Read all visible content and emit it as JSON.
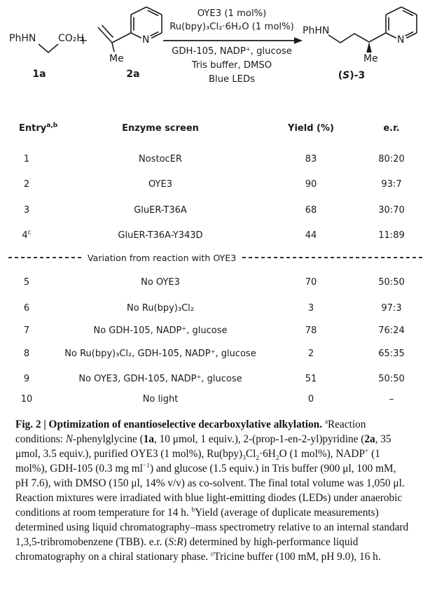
{
  "meta": {
    "background": "#ffffff",
    "ink": "#1a1a1a"
  },
  "scheme": {
    "reactant1": {
      "amine_label": "PhHN",
      "acid_label": "CO₂H",
      "compound_label": "1a"
    },
    "plus_sign": "+",
    "reactant2": {
      "methyl_label": "Me",
      "nitrogen_label": "N",
      "compound_label": "2a"
    },
    "conditions_above": [
      "OYE3 (1 mol%)",
      "Ru(bpy)₃Cl₂·6H₂O (1 mol%)"
    ],
    "conditions_below": [
      "GDH-105, NADP⁺, glucose",
      "Tris buffer, DMSO",
      "Blue LEDs"
    ],
    "product": {
      "amine_label": "PhHN",
      "methyl_label": "Me",
      "nitrogen_label": "N",
      "compound_label_runs": [
        {
          "t": "(",
          "s": "b"
        },
        {
          "t": "S",
          "s": "bi"
        },
        {
          "t": ")-3",
          "s": "b"
        }
      ]
    }
  },
  "table": {
    "headers": {
      "entry": "Entry",
      "entry_sup": "a,b",
      "enzyme": "Enzyme screen",
      "yield": "Yield (%)",
      "er": "e.r."
    },
    "divider_label": "Variation from reaction with OYE3",
    "rows": [
      {
        "entry": "1",
        "entry_sup": "",
        "enzyme": "NostocER",
        "yield": "83",
        "er": "80:20"
      },
      {
        "entry": "2",
        "entry_sup": "",
        "enzyme": "OYE3",
        "yield": "90",
        "er": "93:7"
      },
      {
        "entry": "3",
        "entry_sup": "",
        "enzyme": "GluER-T36A",
        "yield": "68",
        "er": "30:70"
      },
      {
        "entry": "4",
        "entry_sup": "c",
        "enzyme": "GluER-T36A-Y343D",
        "yield": "44",
        "er": "11:89"
      },
      {
        "entry": "5",
        "entry_sup": "",
        "enzyme": "No OYE3",
        "yield": "70",
        "er": "50:50"
      },
      {
        "entry": "6",
        "entry_sup": "",
        "enzyme": "No Ru(bpy)₃Cl₂",
        "yield": "3",
        "er": "97:3"
      },
      {
        "entry": "7",
        "entry_sup": "",
        "enzyme": "No GDH-105, NADP⁺, glucose",
        "yield": "78",
        "er": "76:24"
      },
      {
        "entry": "8",
        "entry_sup": "",
        "enzyme": "No Ru(bpy)₃Cl₂, GDH-105, NADP⁺, glucose",
        "yield": "2",
        "er": "65:35"
      },
      {
        "entry": "9",
        "entry_sup": "",
        "enzyme": "No OYE3, GDH-105, NADP⁺, glucose",
        "yield": "51",
        "er": "50:50"
      },
      {
        "entry": "10",
        "entry_sup": "",
        "enzyme": "No light",
        "yield": "0",
        "er": "–"
      }
    ]
  },
  "caption": {
    "runs": [
      {
        "t": "Fig. 2 | Optimization of enantioselective decarboxylative alkylation. ",
        "s": "b"
      },
      {
        "t": "a",
        "s": "sup"
      },
      {
        "t": "Reaction conditions: "
      },
      {
        "t": "N",
        "s": "i"
      },
      {
        "t": "-phenylglycine ("
      },
      {
        "t": "1a",
        "s": "b"
      },
      {
        "t": ", 10 μmol, 1 equiv.), 2-(prop-1-en-2-yl)pyridine ("
      },
      {
        "t": "2a",
        "s": "b"
      },
      {
        "t": ", 35 μmol, 3.5 equiv.), purified OYE3 (1 mol%), Ru(bpy)"
      },
      {
        "t": "3",
        "s": "sub"
      },
      {
        "t": "Cl"
      },
      {
        "t": "2",
        "s": "sub"
      },
      {
        "t": "·6H"
      },
      {
        "t": "2",
        "s": "sub"
      },
      {
        "t": "O (1 mol%), NADP"
      },
      {
        "t": "+",
        "s": "sup"
      },
      {
        "t": " (1 mol%), GDH-105 (0.3 mg ml"
      },
      {
        "t": "−1",
        "s": "sup"
      },
      {
        "t": ") and glucose (1.5 equiv.) in Tris buffer (900 μl, 100 mM, pH 7.6), with DMSO (150 μl, 14% v/v) as co-solvent. The final total volume was 1,050 μl. Reaction mixtures were irradiated with blue light-emitting diodes (LEDs) under anaerobic conditions at room temperature for 14 h. "
      },
      {
        "t": "b",
        "s": "sup"
      },
      {
        "t": "Yield (average of duplicate measurements) determined using liquid chromatography–mass spectrometry relative to an internal standard 1,3,5-tribromobenzene (TBB). e.r. ("
      },
      {
        "t": "S",
        "s": "i"
      },
      {
        "t": ":"
      },
      {
        "t": "R",
        "s": "i"
      },
      {
        "t": ") determined by high-performance liquid chromatography on a chiral stationary phase. "
      },
      {
        "t": "c",
        "s": "sup"
      },
      {
        "t": "Tricine buffer (100 mM, pH 9.0), 16 h."
      }
    ]
  }
}
